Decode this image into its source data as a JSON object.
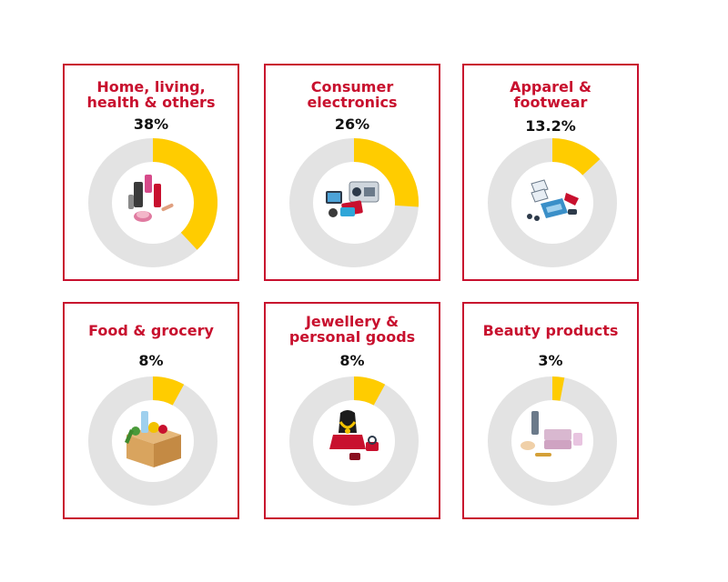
{
  "chart_data": {
    "type": "pie",
    "variant": "donut-small-multiples",
    "unit": "%",
    "track_color": "#e3e3e3",
    "fill_color": "#ffcc00",
    "accent_color": "#c8102e",
    "items": [
      {
        "label": "Home, living,\nhealth & others",
        "value": 38,
        "value_label": "38%",
        "icon": "cosmetics-illustration"
      },
      {
        "label": "Consumer\nelectronics",
        "value": 26,
        "value_label": "26%",
        "icon": "electronics-illustration"
      },
      {
        "label": "Apparel &\nfootwear",
        "value": 13.2,
        "value_label": "13.2%",
        "icon": "apparel-illustration"
      },
      {
        "label": "Food & grocery",
        "value": 8,
        "value_label": "8%",
        "icon": "grocery-box-illustration"
      },
      {
        "label": "Jewellery &\npersonal goods",
        "value": 8,
        "value_label": "8%",
        "icon": "jewellery-illustration"
      },
      {
        "label": "Beauty products",
        "value": 3,
        "value_label": "3%",
        "icon": "beauty-products-illustration"
      }
    ]
  }
}
